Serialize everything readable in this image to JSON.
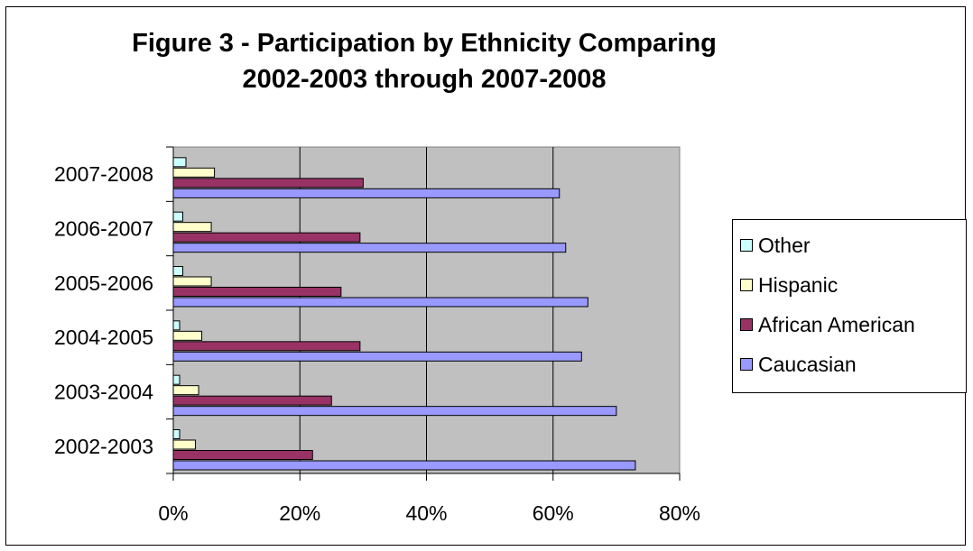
{
  "chart_data": {
    "type": "bar",
    "orientation": "horizontal",
    "title_lines": [
      "Figure 3 - Participation by Ethnicity Comparing",
      "2002-2003 through 2007-2008"
    ],
    "categories": [
      "2002-2003",
      "2003-2004",
      "2004-2005",
      "2005-2006",
      "2006-2007",
      "2007-2008"
    ],
    "series": [
      {
        "name": "Caucasian",
        "color": "#9999ff",
        "values": [
          73,
          70,
          64.5,
          65.5,
          62,
          61
        ]
      },
      {
        "name": "African American",
        "color": "#993366",
        "values": [
          22,
          25,
          29.5,
          26.5,
          29.5,
          30
        ]
      },
      {
        "name": "Hispanic",
        "color": "#ffffcc",
        "values": [
          3.5,
          4,
          4.5,
          6,
          6,
          6.5
        ]
      },
      {
        "name": "Other",
        "color": "#ccffff",
        "values": [
          1,
          1,
          1,
          1.5,
          1.5,
          2
        ]
      }
    ],
    "xlim": [
      0,
      80
    ],
    "xticks": [
      "0%",
      "20%",
      "40%",
      "60%",
      "80%"
    ],
    "xlabel": "",
    "ylabel": "",
    "grid": "vertical",
    "plot_background": "#c0c0c0",
    "legend_position": "right",
    "legend_order": [
      "Other",
      "Hispanic",
      "African American",
      "Caucasian"
    ]
  }
}
